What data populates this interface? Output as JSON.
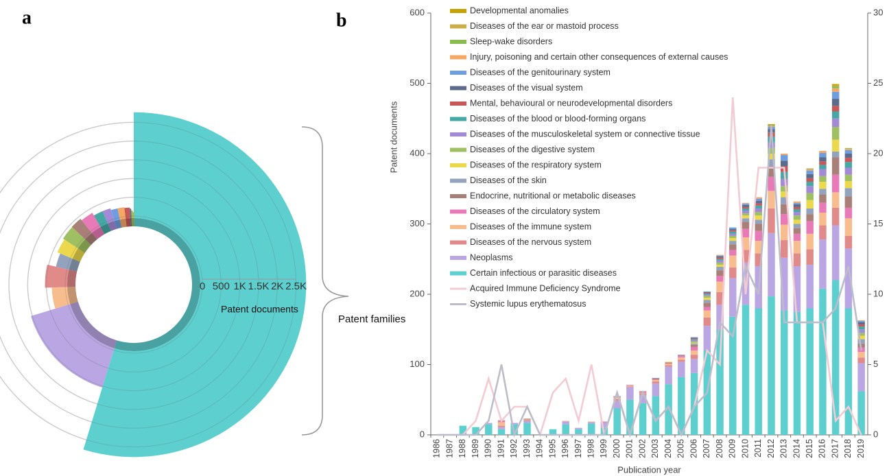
{
  "panel_labels": [
    "a",
    "b"
  ],
  "chart_data": [
    {
      "type": "radial_bar",
      "radial_axis_label": "Patent documents",
      "angular_axis_label": "Patent families",
      "rlim": [
        0,
        2800
      ],
      "rticks": [
        0,
        500,
        {
          "value": 1000,
          "label": "1K"
        },
        {
          "value": 1500,
          "label": "1.5K"
        },
        {
          "value": 2000,
          "label": "2K"
        },
        {
          "value": 2500,
          "label": "2.5K"
        }
      ],
      "values": [
        2770,
        1040,
        360,
        540,
        300,
        380,
        420,
        430,
        380,
        300,
        300,
        250,
        250,
        230,
        200,
        150,
        120,
        100
      ],
      "families": [
        788,
        224,
        60,
        60,
        40,
        40,
        40,
        32,
        36,
        28,
        24,
        20,
        20,
        16,
        4,
        4,
        2,
        2
      ],
      "colors": [
        "#5ecfcf",
        "#b9a6e2",
        "#f8bd8e",
        "#e08a8a",
        "#94a3bd",
        "#ebd84c",
        "#9fc062",
        "#a98078",
        "#e87ab8",
        "#45a8a5",
        "#a28ad6",
        "#6f9ee0",
        "#f4a864",
        "#c85858",
        "#5c6a8c",
        "#88bb50",
        "#ccae48",
        "#c9a200"
      ]
    },
    {
      "type": "bar",
      "stacked": true,
      "x_axis_label": "Publication year",
      "y_axis_label": "Patent documents",
      "categories": [
        "1986",
        "1987",
        "1988",
        "1989",
        "1990",
        "1991",
        "1992",
        "1993",
        "1994",
        "1995",
        "1996",
        "1997",
        "1998",
        "1999",
        "2000",
        "2001",
        "2002",
        "2003",
        "2004",
        "2005",
        "2006",
        "2007",
        "2008",
        "2009",
        "2010",
        "2011",
        "2012",
        "2013",
        "2014",
        "2015",
        "2016",
        "2017",
        "2018",
        "2019"
      ],
      "ylim": [
        0,
        600
      ],
      "yticks": [
        0,
        100,
        200,
        300,
        400,
        500,
        600
      ],
      "y2lim": [
        0,
        30
      ],
      "y2ticks": [
        0,
        5,
        10,
        15,
        20,
        25,
        30
      ],
      "series": [
        {
          "name": "Developmental anomalies",
          "color": "#c9a200",
          "values": [
            0,
            0,
            0,
            0,
            0,
            0,
            0,
            0,
            0,
            0,
            0,
            0,
            0,
            0,
            0,
            0,
            0,
            0,
            0,
            0,
            0,
            0,
            0,
            0,
            0,
            0,
            1,
            0,
            0,
            0,
            0,
            2,
            0,
            0
          ]
        },
        {
          "name": "Diseases of the ear or mastoid process",
          "color": "#ccae48",
          "values": [
            0,
            0,
            0,
            0,
            0,
            0,
            0,
            0,
            0,
            0,
            0,
            0,
            0,
            0,
            0,
            0,
            0,
            0,
            0,
            0,
            0,
            0,
            0,
            0,
            0,
            0,
            1,
            0,
            0,
            0,
            0,
            1,
            0,
            0
          ]
        },
        {
          "name": "Sleep-wake disorders",
          "color": "#88bb50",
          "values": [
            0,
            0,
            0,
            0,
            0,
            0,
            0,
            0,
            0,
            0,
            0,
            0,
            0,
            0,
            0,
            0,
            0,
            0,
            0,
            0,
            0,
            0,
            0,
            0,
            0,
            0,
            1,
            0,
            0,
            1,
            0,
            3,
            1,
            0
          ]
        },
        {
          "name": "Injury, poisoning and certain other consequences of external causes",
          "color": "#f4a864",
          "values": [
            0,
            0,
            0,
            0,
            0,
            1,
            0,
            0,
            0,
            0,
            0,
            0,
            0,
            0,
            0,
            0,
            0,
            0,
            0,
            0,
            0,
            0,
            1,
            0,
            1,
            2,
            1,
            2,
            2,
            2,
            3,
            5,
            2,
            1
          ]
        },
        {
          "name": "Diseases of the genitourinary system",
          "color": "#6f9ee0",
          "values": [
            0,
            0,
            0,
            0,
            0,
            0,
            0,
            0,
            0,
            0,
            0,
            0,
            0,
            0,
            0,
            0,
            0,
            0,
            0,
            0,
            1,
            1,
            1,
            2,
            2,
            3,
            3,
            8,
            2,
            5,
            6,
            10,
            5,
            2
          ]
        },
        {
          "name": "Diseases of the visual system",
          "color": "#5c6a8c",
          "values": [
            0,
            0,
            0,
            0,
            0,
            0,
            0,
            0,
            0,
            0,
            0,
            0,
            0,
            0,
            0,
            0,
            0,
            0,
            0,
            0,
            1,
            1,
            2,
            2,
            3,
            4,
            5,
            8,
            4,
            6,
            6,
            10,
            6,
            3
          ]
        },
        {
          "name": "Mental, behavioural or neurodevelopmental disorders",
          "color": "#c85858",
          "values": [
            0,
            0,
            0,
            0,
            0,
            0,
            0,
            0,
            0,
            0,
            0,
            0,
            0,
            0,
            0,
            0,
            0,
            0,
            0,
            0,
            1,
            1,
            2,
            2,
            2,
            3,
            6,
            8,
            3,
            5,
            5,
            8,
            6,
            3
          ]
        },
        {
          "name": "Diseases of the blood or blood-forming organs",
          "color": "#45a8a5",
          "values": [
            0,
            0,
            0,
            0,
            0,
            0,
            0,
            0,
            0,
            0,
            0,
            0,
            0,
            0,
            0,
            0,
            0,
            0,
            0,
            0,
            1,
            1,
            2,
            3,
            3,
            4,
            8,
            10,
            4,
            6,
            6,
            10,
            8,
            4
          ]
        },
        {
          "name": "Diseases of the musculoskeletal system or connective tissue",
          "color": "#a28ad6",
          "values": [
            0,
            0,
            0,
            0,
            0,
            1,
            0,
            0,
            0,
            0,
            0,
            0,
            0,
            0,
            0,
            0,
            0,
            0,
            0,
            1,
            2,
            2,
            3,
            3,
            4,
            5,
            8,
            10,
            5,
            10,
            10,
            12,
            10,
            5
          ]
        },
        {
          "name": "Diseases of the digestive system",
          "color": "#9fc062",
          "values": [
            0,
            0,
            0,
            0,
            0,
            0,
            0,
            0,
            0,
            0,
            0,
            0,
            0,
            0,
            0,
            0,
            0,
            0,
            0,
            0,
            2,
            3,
            3,
            3,
            3,
            5,
            8,
            8,
            6,
            10,
            8,
            18,
            9,
            4
          ]
        },
        {
          "name": "Diseases of the respiratory system",
          "color": "#ebd84c",
          "values": [
            0,
            0,
            0,
            0,
            0,
            0,
            0,
            0,
            0,
            0,
            0,
            0,
            0,
            0,
            0,
            0,
            0,
            0,
            1,
            0,
            1,
            3,
            3,
            4,
            4,
            6,
            8,
            8,
            6,
            12,
            10,
            17,
            10,
            5
          ]
        },
        {
          "name": "Diseases of the skin",
          "color": "#94a3bd",
          "values": [
            0,
            0,
            0,
            0,
            0,
            0,
            0,
            0,
            0,
            0,
            0,
            0,
            0,
            0,
            0,
            0,
            0,
            1,
            0,
            0,
            2,
            4,
            5,
            5,
            5,
            6,
            10,
            10,
            6,
            8,
            8,
            8,
            12,
            6
          ]
        },
        {
          "name": "Endocrine, nutritional or metabolic diseases",
          "color": "#a98078",
          "values": [
            0,
            0,
            0,
            0,
            0,
            0,
            0,
            1,
            0,
            0,
            0,
            0,
            0,
            0,
            1,
            0,
            1,
            1,
            1,
            1,
            3,
            6,
            8,
            8,
            10,
            10,
            15,
            14,
            8,
            10,
            12,
            25,
            16,
            6
          ]
        },
        {
          "name": "Diseases of the circulatory system",
          "color": "#e87ab8",
          "values": [
            0,
            0,
            0,
            0,
            0,
            1,
            0,
            0,
            0,
            0,
            0,
            0,
            0,
            0,
            1,
            1,
            1,
            1,
            1,
            2,
            5,
            5,
            8,
            8,
            12,
            14,
            20,
            15,
            10,
            18,
            14,
            25,
            15,
            6
          ]
        },
        {
          "name": "Diseases of the immune system",
          "color": "#f8bd8e",
          "values": [
            0,
            0,
            0,
            0,
            0,
            5,
            0,
            1,
            0,
            0,
            1,
            0,
            1,
            0,
            2,
            1,
            1,
            2,
            2,
            3,
            6,
            10,
            15,
            17,
            18,
            18,
            25,
            22,
            18,
            22,
            18,
            22,
            25,
            8
          ]
        },
        {
          "name": "Diseases of the nervous system",
          "color": "#e08a8a",
          "values": [
            0,
            0,
            0,
            0,
            0,
            2,
            0,
            1,
            0,
            0,
            0,
            0,
            0,
            1,
            3,
            1,
            2,
            3,
            2,
            3,
            6,
            12,
            18,
            15,
            18,
            18,
            35,
            25,
            18,
            22,
            20,
            25,
            18,
            8
          ]
        },
        {
          "name": "Neoplasms",
          "color": "#b9a6e2",
          "values": [
            0,
            0,
            0,
            0,
            2,
            3,
            2,
            3,
            0,
            0,
            4,
            2,
            2,
            8,
            10,
            18,
            12,
            18,
            25,
            22,
            20,
            35,
            35,
            55,
            60,
            60,
            90,
            75,
            65,
            62,
            70,
            78,
            85,
            40
          ]
        },
        {
          "name": "Certain infectious or parasitic diseases",
          "color": "#5ecfcf",
          "values": [
            0,
            0,
            13,
            11,
            15,
            8,
            15,
            17,
            0,
            8,
            15,
            8,
            16,
            10,
            38,
            50,
            45,
            55,
            72,
            82,
            88,
            120,
            150,
            168,
            185,
            180,
            197,
            177,
            175,
            180,
            208,
            220,
            180,
            62
          ]
        },
        {
          "name": "Acquired Immune Deficiency Syndrome",
          "color": "#f2cbd3",
          "type": "line",
          "axis": "y2",
          "values": [
            0,
            0,
            0,
            1,
            4,
            1,
            2,
            2,
            0,
            3,
            4,
            1,
            5,
            0,
            3,
            0,
            3,
            1,
            2,
            0,
            2,
            6,
            5,
            24,
            10,
            19,
            19,
            19,
            8,
            8,
            8,
            1,
            2,
            0
          ]
        },
        {
          "name": "Systemic lupus erythematosus",
          "color": "#bcbccb",
          "type": "line",
          "axis": "y2",
          "values": [
            0,
            0,
            0,
            0,
            1,
            5,
            0,
            2,
            0,
            0,
            0,
            0,
            0,
            0,
            3,
            0,
            3,
            1,
            2,
            0,
            2,
            3,
            8,
            7,
            12,
            10,
            22,
            8,
            8,
            8,
            8,
            9,
            12,
            6
          ]
        }
      ]
    }
  ]
}
